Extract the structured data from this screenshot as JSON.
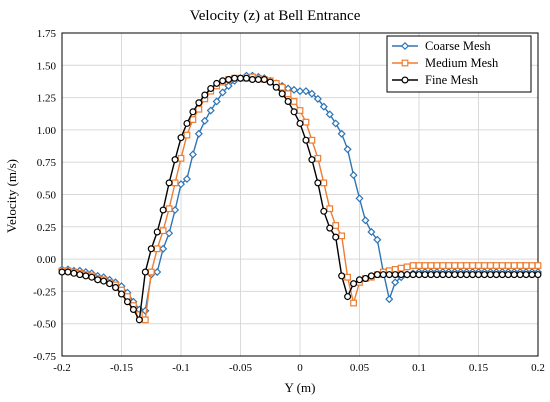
{
  "chart_data": {
    "type": "line",
    "title": "Velocity (z) at Bell Entrance",
    "xlabel": "Y (m)",
    "ylabel": "Velocity  (m/s)",
    "xlim": [
      -0.2,
      0.2
    ],
    "ylim": [
      -0.75,
      1.75
    ],
    "x_ticks": [
      -0.2,
      -0.15,
      -0.1,
      -0.05,
      0,
      0.05,
      0.1,
      0.15,
      0.2
    ],
    "x_tick_labels": [
      "-0.2",
      "-0.15",
      "-0.1",
      "-0.05",
      "0",
      "0.05",
      "0.1",
      "0.15",
      "0.2"
    ],
    "y_ticks": [
      -0.75,
      -0.5,
      -0.25,
      0,
      0.25,
      0.5,
      0.75,
      1,
      1.25,
      1.5,
      1.75
    ],
    "y_tick_labels": [
      "-0.75",
      "-0.50",
      "-0.25",
      "0.00",
      "0.25",
      "0.50",
      "0.75",
      "1.00",
      "1.25",
      "1.50",
      "1.75"
    ],
    "grid": true,
    "legend_position": "top-right",
    "series": [
      {
        "name": "Coarse Mesh",
        "color": "#2e75b6",
        "marker": "diamond",
        "x": [
          -0.2,
          -0.195,
          -0.19,
          -0.185,
          -0.18,
          -0.175,
          -0.17,
          -0.165,
          -0.16,
          -0.155,
          -0.15,
          -0.145,
          -0.14,
          -0.135,
          -0.13,
          -0.125,
          -0.12,
          -0.115,
          -0.11,
          -0.105,
          -0.1,
          -0.095,
          -0.09,
          -0.085,
          -0.08,
          -0.075,
          -0.07,
          -0.065,
          -0.06,
          -0.055,
          -0.05,
          -0.045,
          -0.04,
          -0.035,
          -0.03,
          -0.025,
          -0.02,
          -0.015,
          -0.01,
          -0.005,
          0,
          0.005,
          0.01,
          0.015,
          0.02,
          0.025,
          0.03,
          0.035,
          0.04,
          0.045,
          0.05,
          0.055,
          0.06,
          0.065,
          0.07,
          0.075,
          0.08,
          0.085,
          0.09,
          0.095,
          0.1,
          0.105,
          0.11,
          0.115,
          0.12,
          0.125,
          0.13,
          0.135,
          0.14,
          0.145,
          0.15,
          0.155,
          0.16,
          0.165,
          0.17,
          0.175,
          0.18,
          0.185,
          0.19,
          0.195,
          0.2
        ],
        "y": [
          -0.08,
          -0.08,
          -0.09,
          -0.09,
          -0.1,
          -0.11,
          -0.13,
          -0.14,
          -0.16,
          -0.18,
          -0.21,
          -0.26,
          -0.33,
          -0.39,
          -0.4,
          -0.12,
          -0.1,
          0.08,
          0.2,
          0.38,
          0.58,
          0.62,
          0.81,
          0.97,
          1.07,
          1.15,
          1.22,
          1.29,
          1.34,
          1.38,
          1.4,
          1.42,
          1.42,
          1.41,
          1.4,
          1.38,
          1.36,
          1.34,
          1.32,
          1.31,
          1.3,
          1.3,
          1.28,
          1.24,
          1.18,
          1.12,
          1.05,
          0.97,
          0.85,
          0.65,
          0.47,
          0.3,
          0.21,
          0.15,
          -0.1,
          -0.31,
          -0.18,
          -0.14,
          -0.12,
          -0.11,
          -0.1,
          -0.1,
          -0.1,
          -0.1,
          -0.1,
          -0.1,
          -0.1,
          -0.1,
          -0.1,
          -0.1,
          -0.1,
          -0.1,
          -0.1,
          -0.1,
          -0.1,
          -0.1,
          -0.1,
          -0.1,
          -0.1,
          -0.1,
          -0.1
        ]
      },
      {
        "name": "Medium Mesh",
        "color": "#ed7d31",
        "marker": "square",
        "x": [
          -0.2,
          -0.195,
          -0.19,
          -0.185,
          -0.18,
          -0.175,
          -0.17,
          -0.165,
          -0.16,
          -0.155,
          -0.15,
          -0.145,
          -0.14,
          -0.135,
          -0.13,
          -0.125,
          -0.12,
          -0.115,
          -0.11,
          -0.105,
          -0.1,
          -0.095,
          -0.09,
          -0.085,
          -0.08,
          -0.075,
          -0.07,
          -0.065,
          -0.06,
          -0.055,
          -0.05,
          -0.045,
          -0.04,
          -0.035,
          -0.03,
          -0.025,
          -0.02,
          -0.015,
          -0.01,
          -0.005,
          0,
          0.005,
          0.01,
          0.015,
          0.02,
          0.025,
          0.03,
          0.035,
          0.04,
          0.045,
          0.05,
          0.055,
          0.06,
          0.065,
          0.07,
          0.075,
          0.08,
          0.085,
          0.09,
          0.095,
          0.1,
          0.105,
          0.11,
          0.115,
          0.12,
          0.125,
          0.13,
          0.135,
          0.14,
          0.145,
          0.15,
          0.155,
          0.16,
          0.165,
          0.17,
          0.175,
          0.18,
          0.185,
          0.19,
          0.195,
          0.2
        ],
        "y": [
          -0.09,
          -0.09,
          -0.1,
          -0.11,
          -0.12,
          -0.13,
          -0.15,
          -0.16,
          -0.18,
          -0.2,
          -0.24,
          -0.29,
          -0.36,
          -0.43,
          -0.47,
          -0.1,
          0.08,
          0.22,
          0.39,
          0.59,
          0.78,
          0.96,
          1.08,
          1.16,
          1.24,
          1.3,
          1.34,
          1.37,
          1.39,
          1.4,
          1.4,
          1.4,
          1.41,
          1.4,
          1.39,
          1.38,
          1.36,
          1.33,
          1.28,
          1.22,
          1.15,
          1.06,
          0.92,
          0.78,
          0.59,
          0.39,
          0.26,
          0.18,
          -0.14,
          -0.34,
          -0.18,
          -0.15,
          -0.14,
          -0.12,
          -0.1,
          -0.09,
          -0.08,
          -0.07,
          -0.06,
          -0.05,
          -0.05,
          -0.05,
          -0.05,
          -0.05,
          -0.05,
          -0.05,
          -0.05,
          -0.05,
          -0.05,
          -0.05,
          -0.05,
          -0.05,
          -0.05,
          -0.05,
          -0.05,
          -0.05,
          -0.05,
          -0.05,
          -0.05,
          -0.05,
          -0.05
        ]
      },
      {
        "name": "Fine Mesh",
        "color": "#000000",
        "marker": "circle",
        "x": [
          -0.2,
          -0.195,
          -0.19,
          -0.185,
          -0.18,
          -0.175,
          -0.17,
          -0.165,
          -0.16,
          -0.155,
          -0.15,
          -0.145,
          -0.14,
          -0.135,
          -0.13,
          -0.125,
          -0.12,
          -0.115,
          -0.11,
          -0.105,
          -0.1,
          -0.095,
          -0.09,
          -0.085,
          -0.08,
          -0.075,
          -0.07,
          -0.065,
          -0.06,
          -0.055,
          -0.05,
          -0.045,
          -0.04,
          -0.035,
          -0.03,
          -0.025,
          -0.02,
          -0.015,
          -0.01,
          -0.005,
          0,
          0.005,
          0.01,
          0.015,
          0.02,
          0.025,
          0.03,
          0.035,
          0.04,
          0.045,
          0.05,
          0.055,
          0.06,
          0.065,
          0.07,
          0.075,
          0.08,
          0.085,
          0.09,
          0.095,
          0.1,
          0.105,
          0.11,
          0.115,
          0.12,
          0.125,
          0.13,
          0.135,
          0.14,
          0.145,
          0.15,
          0.155,
          0.16,
          0.165,
          0.17,
          0.175,
          0.18,
          0.185,
          0.19,
          0.195,
          0.2
        ],
        "y": [
          -0.1,
          -0.1,
          -0.11,
          -0.12,
          -0.13,
          -0.14,
          -0.16,
          -0.17,
          -0.19,
          -0.22,
          -0.27,
          -0.33,
          -0.39,
          -0.47,
          -0.1,
          0.08,
          0.21,
          0.38,
          0.59,
          0.77,
          0.94,
          1.05,
          1.14,
          1.21,
          1.27,
          1.32,
          1.36,
          1.38,
          1.39,
          1.4,
          1.4,
          1.4,
          1.39,
          1.39,
          1.39,
          1.37,
          1.33,
          1.28,
          1.22,
          1.14,
          1.05,
          0.92,
          0.77,
          0.59,
          0.37,
          0.24,
          0.17,
          -0.13,
          -0.29,
          -0.19,
          -0.16,
          -0.15,
          -0.13,
          -0.12,
          -0.12,
          -0.12,
          -0.12,
          -0.12,
          -0.12,
          -0.12,
          -0.12,
          -0.12,
          -0.12,
          -0.12,
          -0.12,
          -0.12,
          -0.12,
          -0.12,
          -0.12,
          -0.12,
          -0.12,
          -0.12,
          -0.12,
          -0.12,
          -0.12,
          -0.12,
          -0.12,
          -0.12,
          -0.12,
          -0.12,
          -0.12
        ]
      }
    ]
  }
}
